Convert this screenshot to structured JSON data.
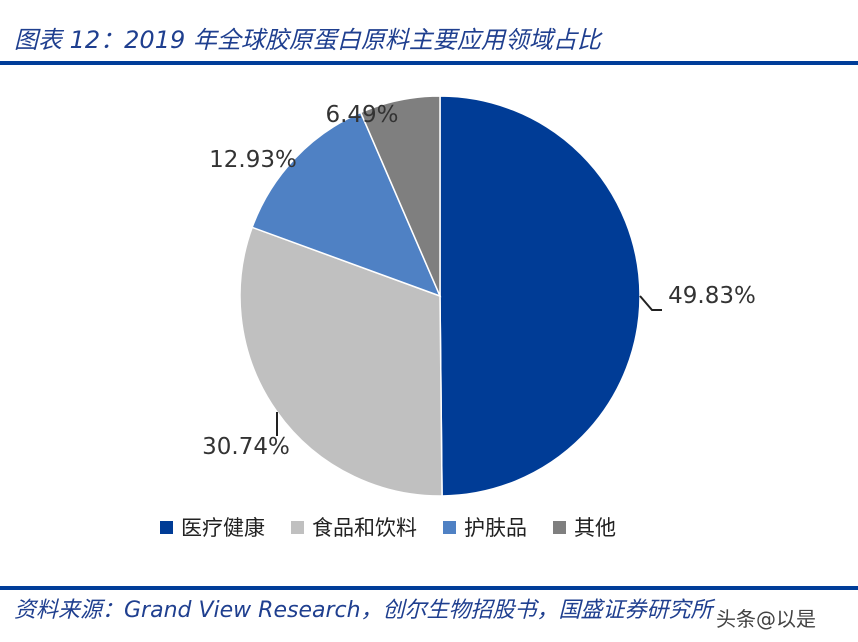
{
  "title": "图表 12：2019 年全球胶原蛋白原料主要应用领域占比",
  "source": "资料来源：Grand View Research，创尔生物招股书，国盛证券研究所",
  "watermark": "头条@以是",
  "chart_data": {
    "type": "pie",
    "categories": [
      "医疗健康",
      "食品和饮料",
      "护肤品",
      "其他"
    ],
    "values": [
      49.83,
      30.74,
      12.93,
      6.49
    ],
    "labels": [
      "49.83%",
      "30.74%",
      "12.93%",
      "6.49%"
    ],
    "colors": [
      "#003c96",
      "#c0c0c0",
      "#4f81c4",
      "#7f7f7f"
    ],
    "start": "top, clockwise",
    "legend": "bottom"
  }
}
